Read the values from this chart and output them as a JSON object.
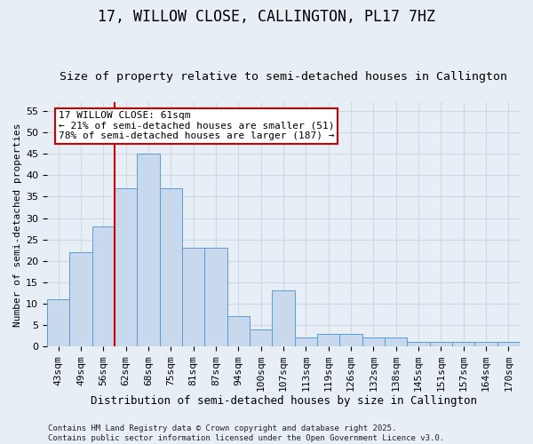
{
  "title1": "17, WILLOW CLOSE, CALLINGTON, PL17 7HZ",
  "title2": "Size of property relative to semi-detached houses in Callington",
  "xlabel": "Distribution of semi-detached houses by size in Callington",
  "ylabel": "Number of semi-detached properties",
  "categories": [
    "43sqm",
    "49sqm",
    "56sqm",
    "62sqm",
    "68sqm",
    "75sqm",
    "81sqm",
    "87sqm",
    "94sqm",
    "100sqm",
    "107sqm",
    "113sqm",
    "119sqm",
    "126sqm",
    "132sqm",
    "138sqm",
    "145sqm",
    "151sqm",
    "157sqm",
    "164sqm",
    "170sqm"
  ],
  "values": [
    11,
    22,
    28,
    37,
    45,
    37,
    23,
    23,
    7,
    4,
    13,
    2,
    3,
    3,
    2,
    2,
    1,
    1,
    1,
    1,
    1
  ],
  "bar_color": "#c8d9ed",
  "bar_edge_color": "#5b9bd5",
  "grid_color": "#d0d8e4",
  "background_color": "#e8eef5",
  "vline_color": "#cc0000",
  "annotation_text": "17 WILLOW CLOSE: 61sqm\n← 21% of semi-detached houses are smaller (51)\n78% of semi-detached houses are larger (187) →",
  "annotation_box_color": "white",
  "annotation_border_color": "#cc0000",
  "ylim": [
    0,
    57
  ],
  "yticks": [
    0,
    5,
    10,
    15,
    20,
    25,
    30,
    35,
    40,
    45,
    50,
    55
  ],
  "footer": "Contains HM Land Registry data © Crown copyright and database right 2025.\nContains public sector information licensed under the Open Government Licence v3.0.",
  "title1_fontsize": 12,
  "title2_fontsize": 9.5,
  "xlabel_fontsize": 9,
  "ylabel_fontsize": 8,
  "tick_fontsize": 8,
  "annot_fontsize": 8,
  "footer_fontsize": 6.5
}
